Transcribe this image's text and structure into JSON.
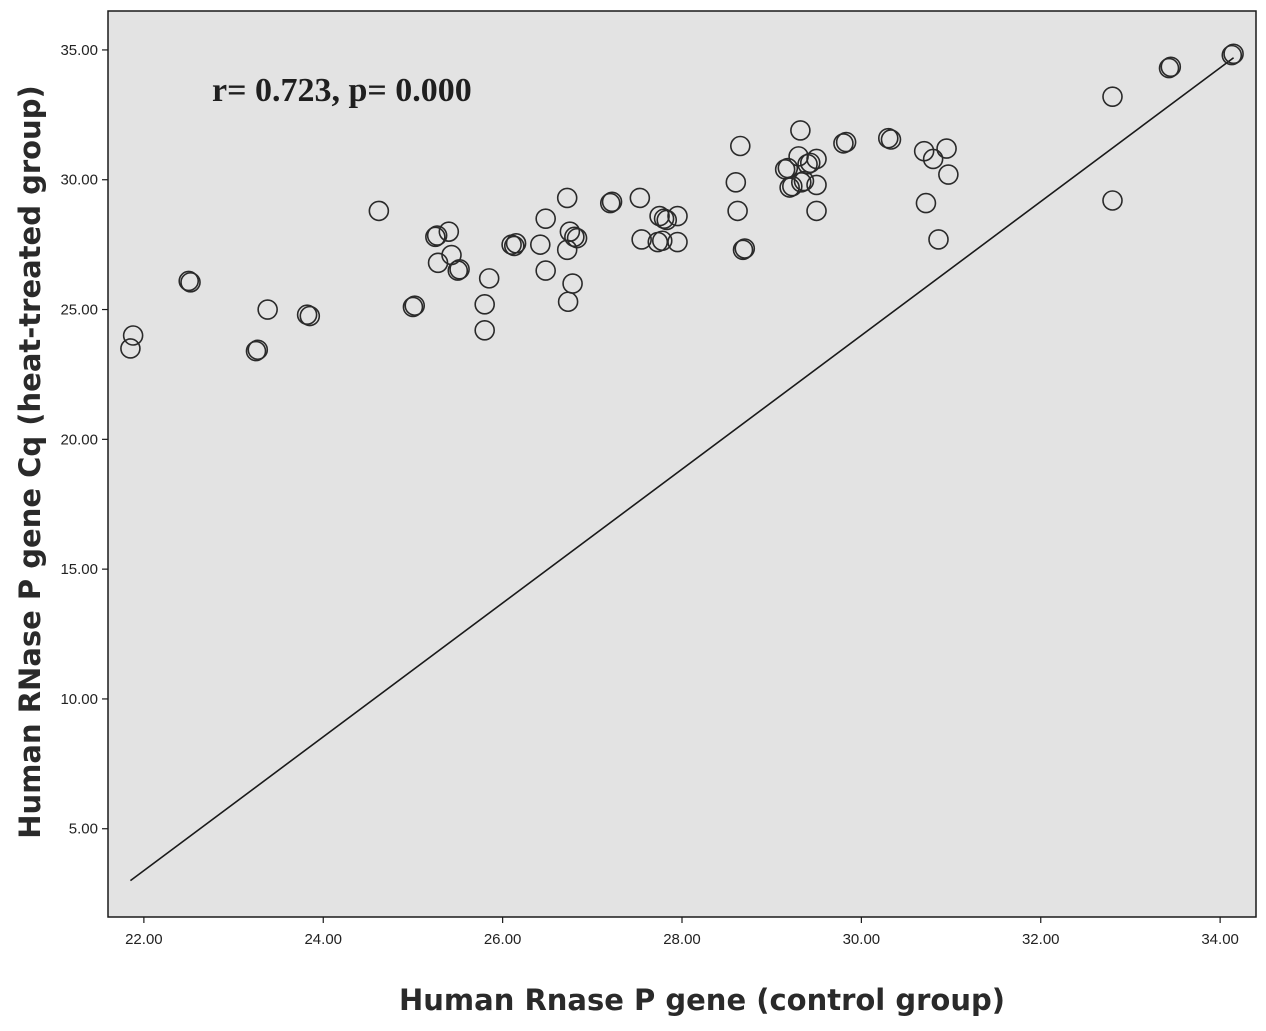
{
  "chart_data": {
    "type": "scatter",
    "title": "",
    "xlabel": "Human Rnase P gene (control group)",
    "ylabel": "Human RNase P gene Cq (heat-treated group)",
    "annotation": "r= 0.723, p= 0.000",
    "xlim": [
      21.6,
      34.4
    ],
    "ylim": [
      1.6,
      36.5
    ],
    "x_ticks": [
      "22.00",
      "24.00",
      "26.00",
      "28.00",
      "30.00",
      "32.00",
      "34.00"
    ],
    "x_tick_values": [
      22,
      24,
      26,
      28,
      30,
      32,
      34
    ],
    "y_ticks": [
      "5.00",
      "10.00",
      "15.00",
      "20.00",
      "25.00",
      "30.00",
      "35.00"
    ],
    "y_tick_values": [
      5,
      10,
      15,
      20,
      25,
      30,
      35
    ],
    "grid": false,
    "background_color": "#e3e3e3",
    "marker_color": "#2a2a2a",
    "fit_line": {
      "x": [
        21.85,
        34.15
      ],
      "y": [
        3.0,
        34.7
      ]
    },
    "points": [
      {
        "x": 21.88,
        "y": 24.0
      },
      {
        "x": 21.85,
        "y": 23.5
      },
      {
        "x": 22.5,
        "y": 26.1
      },
      {
        "x": 22.52,
        "y": 26.05
      },
      {
        "x": 23.25,
        "y": 23.4
      },
      {
        "x": 23.27,
        "y": 23.45
      },
      {
        "x": 23.38,
        "y": 25.0
      },
      {
        "x": 23.82,
        "y": 24.8
      },
      {
        "x": 23.85,
        "y": 24.75
      },
      {
        "x": 24.62,
        "y": 28.8
      },
      {
        "x": 25.0,
        "y": 25.1
      },
      {
        "x": 25.02,
        "y": 25.15
      },
      {
        "x": 25.25,
        "y": 27.8
      },
      {
        "x": 25.27,
        "y": 27.85
      },
      {
        "x": 25.28,
        "y": 26.8
      },
      {
        "x": 25.4,
        "y": 28.0
      },
      {
        "x": 25.43,
        "y": 27.1
      },
      {
        "x": 25.5,
        "y": 26.5
      },
      {
        "x": 25.52,
        "y": 26.55
      },
      {
        "x": 25.8,
        "y": 25.2
      },
      {
        "x": 25.8,
        "y": 24.2
      },
      {
        "x": 25.85,
        "y": 26.2
      },
      {
        "x": 26.1,
        "y": 27.5
      },
      {
        "x": 26.13,
        "y": 27.45
      },
      {
        "x": 26.15,
        "y": 27.55
      },
      {
        "x": 26.42,
        "y": 27.5
      },
      {
        "x": 26.48,
        "y": 28.5
      },
      {
        "x": 26.48,
        "y": 26.5
      },
      {
        "x": 26.72,
        "y": 29.3
      },
      {
        "x": 26.75,
        "y": 28.0
      },
      {
        "x": 26.72,
        "y": 27.3
      },
      {
        "x": 26.8,
        "y": 27.8
      },
      {
        "x": 26.83,
        "y": 27.75
      },
      {
        "x": 26.78,
        "y": 26.0
      },
      {
        "x": 26.73,
        "y": 25.3
      },
      {
        "x": 27.2,
        "y": 29.1
      },
      {
        "x": 27.22,
        "y": 29.15
      },
      {
        "x": 27.53,
        "y": 29.3
      },
      {
        "x": 27.55,
        "y": 27.7
      },
      {
        "x": 27.75,
        "y": 28.6
      },
      {
        "x": 27.8,
        "y": 28.5
      },
      {
        "x": 27.83,
        "y": 28.45
      },
      {
        "x": 27.73,
        "y": 27.6
      },
      {
        "x": 27.78,
        "y": 27.65
      },
      {
        "x": 27.95,
        "y": 28.6
      },
      {
        "x": 27.95,
        "y": 27.6
      },
      {
        "x": 28.6,
        "y": 29.9
      },
      {
        "x": 28.65,
        "y": 31.3
      },
      {
        "x": 28.62,
        "y": 28.8
      },
      {
        "x": 28.68,
        "y": 27.3
      },
      {
        "x": 28.7,
        "y": 27.35
      },
      {
        "x": 29.15,
        "y": 30.4
      },
      {
        "x": 29.18,
        "y": 30.45
      },
      {
        "x": 29.2,
        "y": 29.7
      },
      {
        "x": 29.23,
        "y": 29.75
      },
      {
        "x": 29.3,
        "y": 30.9
      },
      {
        "x": 29.32,
        "y": 31.9
      },
      {
        "x": 29.33,
        "y": 29.9
      },
      {
        "x": 29.36,
        "y": 29.95
      },
      {
        "x": 29.4,
        "y": 30.6
      },
      {
        "x": 29.43,
        "y": 30.65
      },
      {
        "x": 29.5,
        "y": 30.8
      },
      {
        "x": 29.5,
        "y": 29.8
      },
      {
        "x": 29.5,
        "y": 28.8
      },
      {
        "x": 29.8,
        "y": 31.4
      },
      {
        "x": 29.83,
        "y": 31.45
      },
      {
        "x": 30.3,
        "y": 31.6
      },
      {
        "x": 30.33,
        "y": 31.55
      },
      {
        "x": 30.7,
        "y": 31.1
      },
      {
        "x": 30.8,
        "y": 30.8
      },
      {
        "x": 30.95,
        "y": 31.2
      },
      {
        "x": 30.97,
        "y": 30.2
      },
      {
        "x": 30.72,
        "y": 29.1
      },
      {
        "x": 30.86,
        "y": 27.7
      },
      {
        "x": 32.8,
        "y": 33.2
      },
      {
        "x": 32.8,
        "y": 29.2
      },
      {
        "x": 33.43,
        "y": 34.3
      },
      {
        "x": 33.45,
        "y": 34.35
      },
      {
        "x": 34.13,
        "y": 34.8
      },
      {
        "x": 34.15,
        "y": 34.85
      }
    ]
  }
}
